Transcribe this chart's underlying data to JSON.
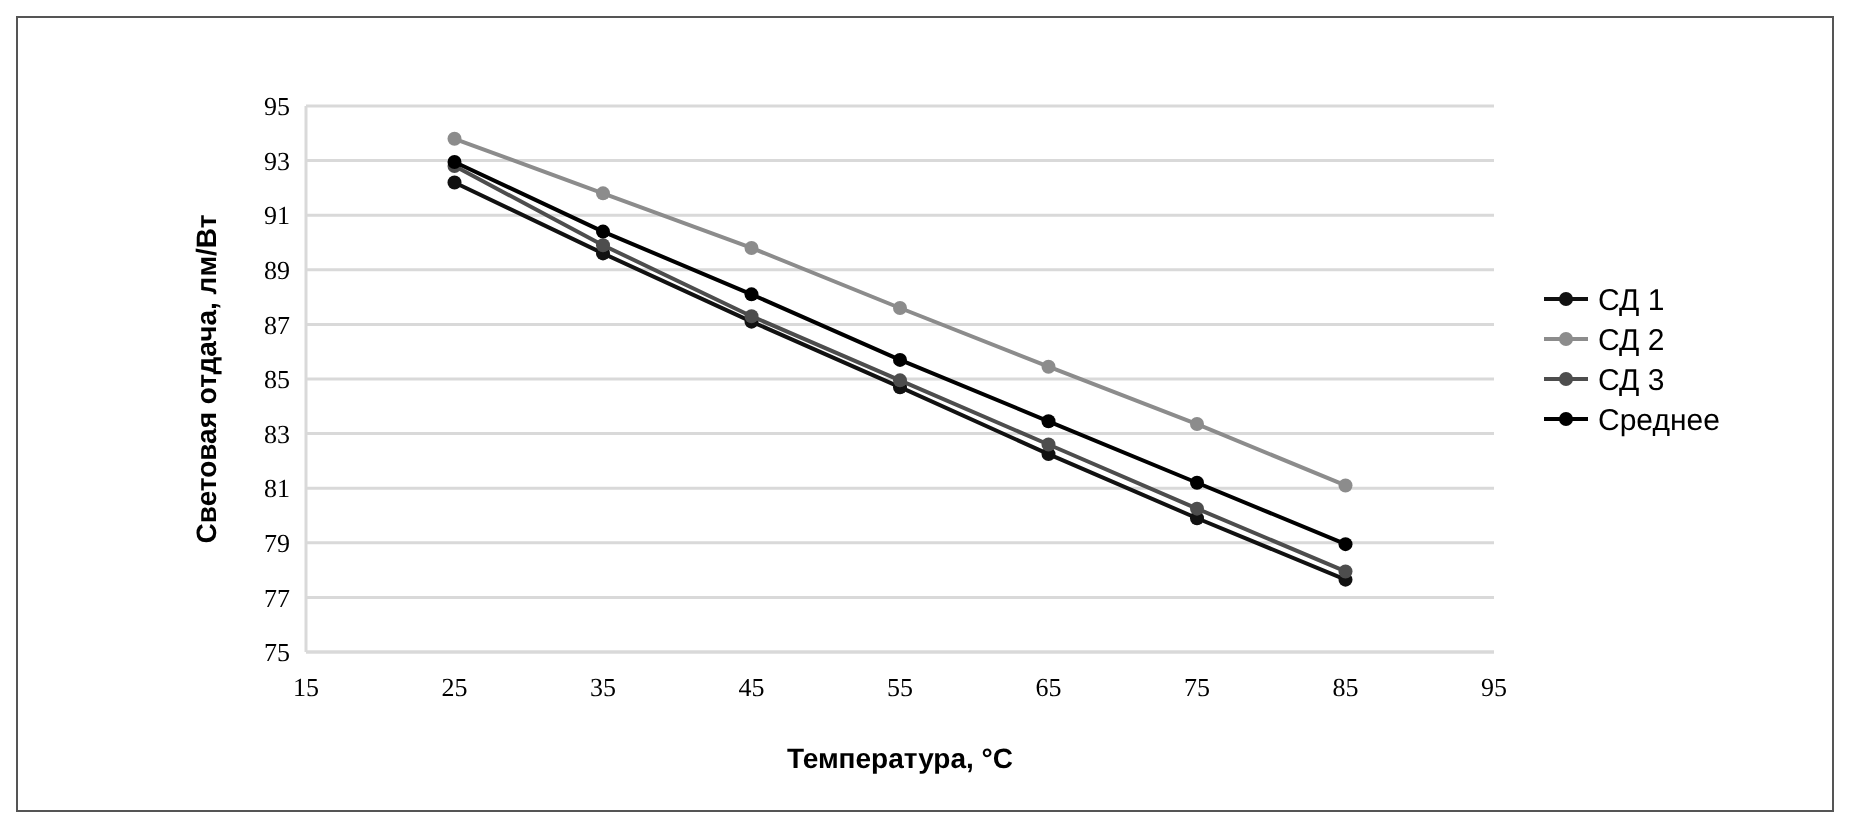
{
  "chart_data": {
    "type": "line",
    "xlabel": "Температура, °С",
    "ylabel": "Световая отдача, лм/Вт",
    "x": [
      25,
      35,
      45,
      55,
      65,
      75,
      85
    ],
    "series": [
      {
        "name": "СД 1",
        "color": "#111111",
        "values": [
          92.2,
          89.6,
          87.1,
          84.7,
          82.25,
          79.9,
          77.65
        ]
      },
      {
        "name": "СД 2",
        "color": "#8c8c8c",
        "values": [
          93.8,
          91.8,
          89.8,
          87.6,
          85.45,
          83.35,
          81.1
        ]
      },
      {
        "name": "СД 3",
        "color": "#4d4d4d",
        "values": [
          92.8,
          89.9,
          87.3,
          84.95,
          82.6,
          80.25,
          77.95
        ]
      },
      {
        "name": "Среднее",
        "color": "#000000",
        "values": [
          92.95,
          90.4,
          88.1,
          85.7,
          83.45,
          81.2,
          78.95
        ]
      }
    ],
    "xlim": [
      15,
      95
    ],
    "xticks": [
      15,
      25,
      35,
      45,
      55,
      65,
      75,
      85,
      95
    ],
    "ylim": [
      75,
      95
    ],
    "yticks": [
      75,
      77,
      79,
      81,
      83,
      85,
      87,
      89,
      91,
      93,
      95
    ],
    "grid": "y",
    "legend": "right",
    "marker": "circle",
    "line_style": "solid"
  }
}
